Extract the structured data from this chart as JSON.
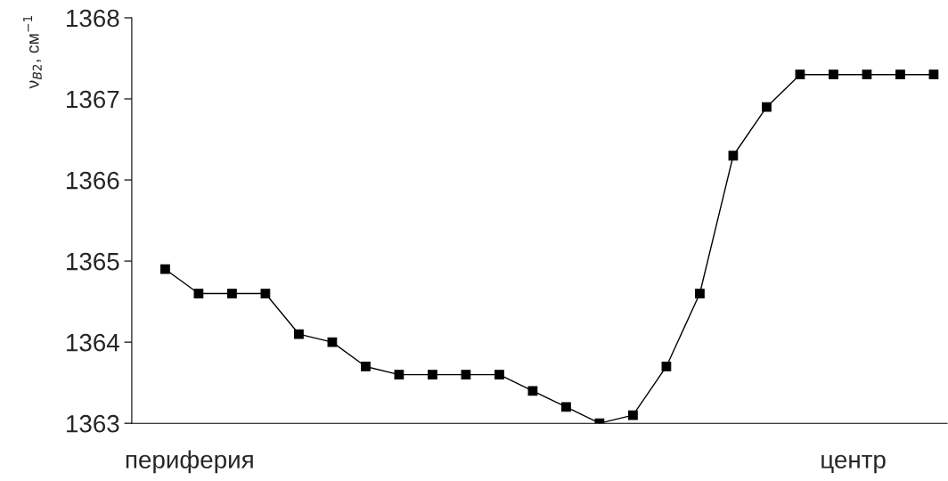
{
  "chart_data": {
    "type": "line",
    "ylabel": "ν$_{B2}$, см$^{−1}$",
    "categories": [
      null,
      null,
      null,
      null,
      null,
      null,
      null,
      null,
      null,
      null,
      null,
      null,
      null,
      null,
      null,
      null,
      null,
      null,
      null,
      null,
      null,
      null,
      null,
      null
    ],
    "series": [
      {
        "color": "#000000",
        "values": [
          1364.9,
          1364.6,
          1364.6,
          1364.6,
          1364.1,
          1364.0,
          1363.7,
          1363.6,
          1363.6,
          1363.6,
          1363.6,
          1363.4,
          1363.2,
          1363.0,
          1363.1,
          1363.7,
          1364.6,
          1366.3,
          1366.9,
          1367.3,
          1367.3,
          1367.3,
          1367.3,
          1367.3
        ]
      }
    ],
    "ylim": [
      1363,
      1368
    ],
    "yticks": [
      1363,
      1364,
      1365,
      1366,
      1367,
      1368
    ],
    "marker": "square",
    "line_style": "solid",
    "grid": false,
    "legend": false,
    "annotations": [
      "периферия",
      "центр"
    ]
  }
}
